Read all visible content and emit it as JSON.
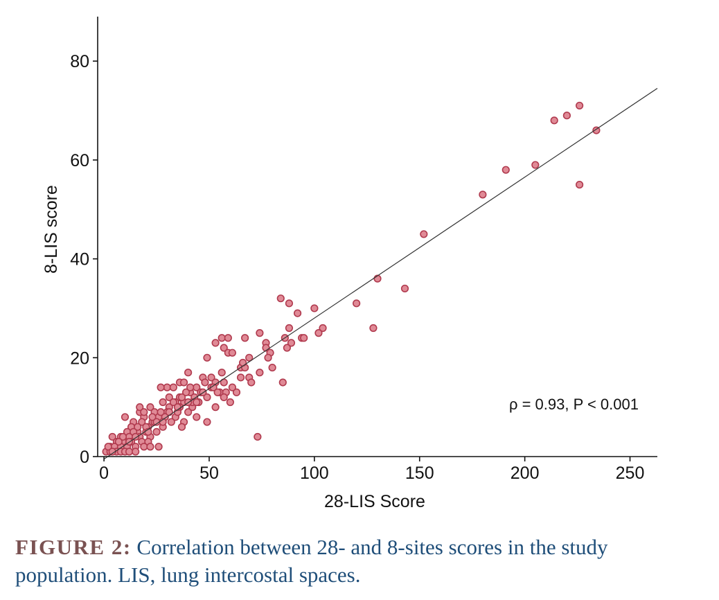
{
  "chart_data": {
    "type": "scatter",
    "title": "",
    "xlabel": "28-LIS Score",
    "ylabel": "8-LIS score",
    "xlim": [
      -3,
      263
    ],
    "ylim": [
      0,
      89
    ],
    "xticks": [
      0,
      50,
      100,
      150,
      200,
      250
    ],
    "yticks": [
      0,
      20,
      40,
      60,
      80
    ],
    "grid": false,
    "annotation": "ρ = 0.93, P < 0.001",
    "regression_line": {
      "x": [
        0,
        263
      ],
      "y": [
        -0.5,
        74.5
      ]
    },
    "marker_fill": "#e08a96",
    "marker_edge": "#b03a4e",
    "points": [
      [
        226,
        71
      ],
      [
        220,
        69
      ],
      [
        214,
        68
      ],
      [
        234,
        66
      ],
      [
        205,
        59
      ],
      [
        191,
        58
      ],
      [
        226,
        55
      ],
      [
        180,
        53
      ],
      [
        152,
        45
      ],
      [
        130,
        36
      ],
      [
        143,
        34
      ],
      [
        120,
        31
      ],
      [
        84,
        32
      ],
      [
        88,
        31
      ],
      [
        100,
        30
      ],
      [
        92,
        29
      ],
      [
        128,
        26
      ],
      [
        104,
        26
      ],
      [
        102,
        25
      ],
      [
        88,
        26
      ],
      [
        74,
        25
      ],
      [
        86,
        24
      ],
      [
        94,
        24
      ],
      [
        95,
        24
      ],
      [
        77,
        23
      ],
      [
        89,
        23
      ],
      [
        77,
        22
      ],
      [
        87,
        22
      ],
      [
        56,
        24
      ],
      [
        59,
        24
      ],
      [
        67,
        24
      ],
      [
        53,
        23
      ],
      [
        57,
        22
      ],
      [
        59,
        21
      ],
      [
        61,
        21
      ],
      [
        79,
        21
      ],
      [
        49,
        20
      ],
      [
        69,
        20
      ],
      [
        78,
        20
      ],
      [
        65,
        18
      ],
      [
        67,
        18
      ],
      [
        80,
        18
      ],
      [
        56,
        17
      ],
      [
        74,
        17
      ],
      [
        40,
        17
      ],
      [
        47,
        16
      ],
      [
        51,
        16
      ],
      [
        69,
        16
      ],
      [
        65,
        16
      ],
      [
        70,
        15
      ],
      [
        85,
        15
      ],
      [
        57,
        15
      ],
      [
        53,
        15
      ],
      [
        48,
        15
      ],
      [
        36,
        15
      ],
      [
        38,
        15
      ],
      [
        51,
        14
      ],
      [
        44,
        14
      ],
      [
        30,
        14
      ],
      [
        33,
        14
      ],
      [
        27,
        14
      ],
      [
        46,
        13
      ],
      [
        55,
        13
      ],
      [
        58,
        13
      ],
      [
        63,
        13
      ],
      [
        41,
        13
      ],
      [
        36,
        12
      ],
      [
        43,
        12
      ],
      [
        49,
        12
      ],
      [
        57,
        12
      ],
      [
        34,
        11
      ],
      [
        38,
        11
      ],
      [
        60,
        11
      ],
      [
        45,
        11
      ],
      [
        28,
        11
      ],
      [
        42,
        10
      ],
      [
        53,
        10
      ],
      [
        31,
        10
      ],
      [
        22,
        10
      ],
      [
        36,
        10
      ],
      [
        40,
        9
      ],
      [
        30,
        9
      ],
      [
        24,
        9
      ],
      [
        17,
        9
      ],
      [
        44,
        8
      ],
      [
        34,
        8
      ],
      [
        26,
        8
      ],
      [
        19,
        8
      ],
      [
        10,
        8
      ],
      [
        49,
        7
      ],
      [
        38,
        7
      ],
      [
        32,
        7
      ],
      [
        23,
        7
      ],
      [
        14,
        7
      ],
      [
        18,
        7
      ],
      [
        73,
        4
      ],
      [
        37,
        6
      ],
      [
        28,
        6
      ],
      [
        21,
        6
      ],
      [
        13,
        6
      ],
      [
        25,
        5
      ],
      [
        20,
        5
      ],
      [
        16,
        5
      ],
      [
        11,
        5
      ],
      [
        8,
        4
      ],
      [
        12,
        4
      ],
      [
        17,
        4
      ],
      [
        22,
        4
      ],
      [
        4,
        4
      ],
      [
        6,
        3
      ],
      [
        9,
        3
      ],
      [
        13,
        3
      ],
      [
        18,
        3
      ],
      [
        21,
        3
      ],
      [
        3,
        2
      ],
      [
        5,
        2
      ],
      [
        8,
        2
      ],
      [
        11,
        2
      ],
      [
        15,
        2
      ],
      [
        19,
        2
      ],
      [
        22,
        2
      ],
      [
        26,
        2
      ],
      [
        1,
        1
      ],
      [
        3,
        1
      ],
      [
        6,
        1
      ],
      [
        8,
        1
      ],
      [
        10,
        1
      ],
      [
        12,
        1
      ],
      [
        15,
        1
      ],
      [
        2,
        2
      ],
      [
        4,
        1
      ],
      [
        27,
        9
      ],
      [
        31,
        12
      ],
      [
        39,
        13
      ],
      [
        42,
        11
      ],
      [
        35,
        9
      ],
      [
        29,
        8
      ],
      [
        24,
        7
      ],
      [
        20,
        6
      ],
      [
        16,
        6
      ],
      [
        14,
        5
      ],
      [
        9,
        4
      ],
      [
        7,
        3
      ],
      [
        17,
        10
      ],
      [
        23,
        8
      ],
      [
        33,
        11
      ],
      [
        47,
        13
      ],
      [
        52,
        14
      ],
      [
        61,
        14
      ],
      [
        66,
        19
      ],
      [
        41,
        14
      ],
      [
        37,
        12
      ],
      [
        19,
        9
      ],
      [
        12,
        3
      ],
      [
        25,
        7
      ],
      [
        31,
        9
      ],
      [
        44,
        11
      ],
      [
        15,
        4
      ],
      [
        21,
        5
      ],
      [
        28,
        7
      ],
      [
        35,
        10
      ],
      [
        40,
        11
      ],
      [
        54,
        13
      ]
    ]
  },
  "caption": {
    "label": "FIGURE 2:",
    "text": "Correlation between 28- and 8-sites scores in the study population. LIS, lung intercostal spaces."
  }
}
